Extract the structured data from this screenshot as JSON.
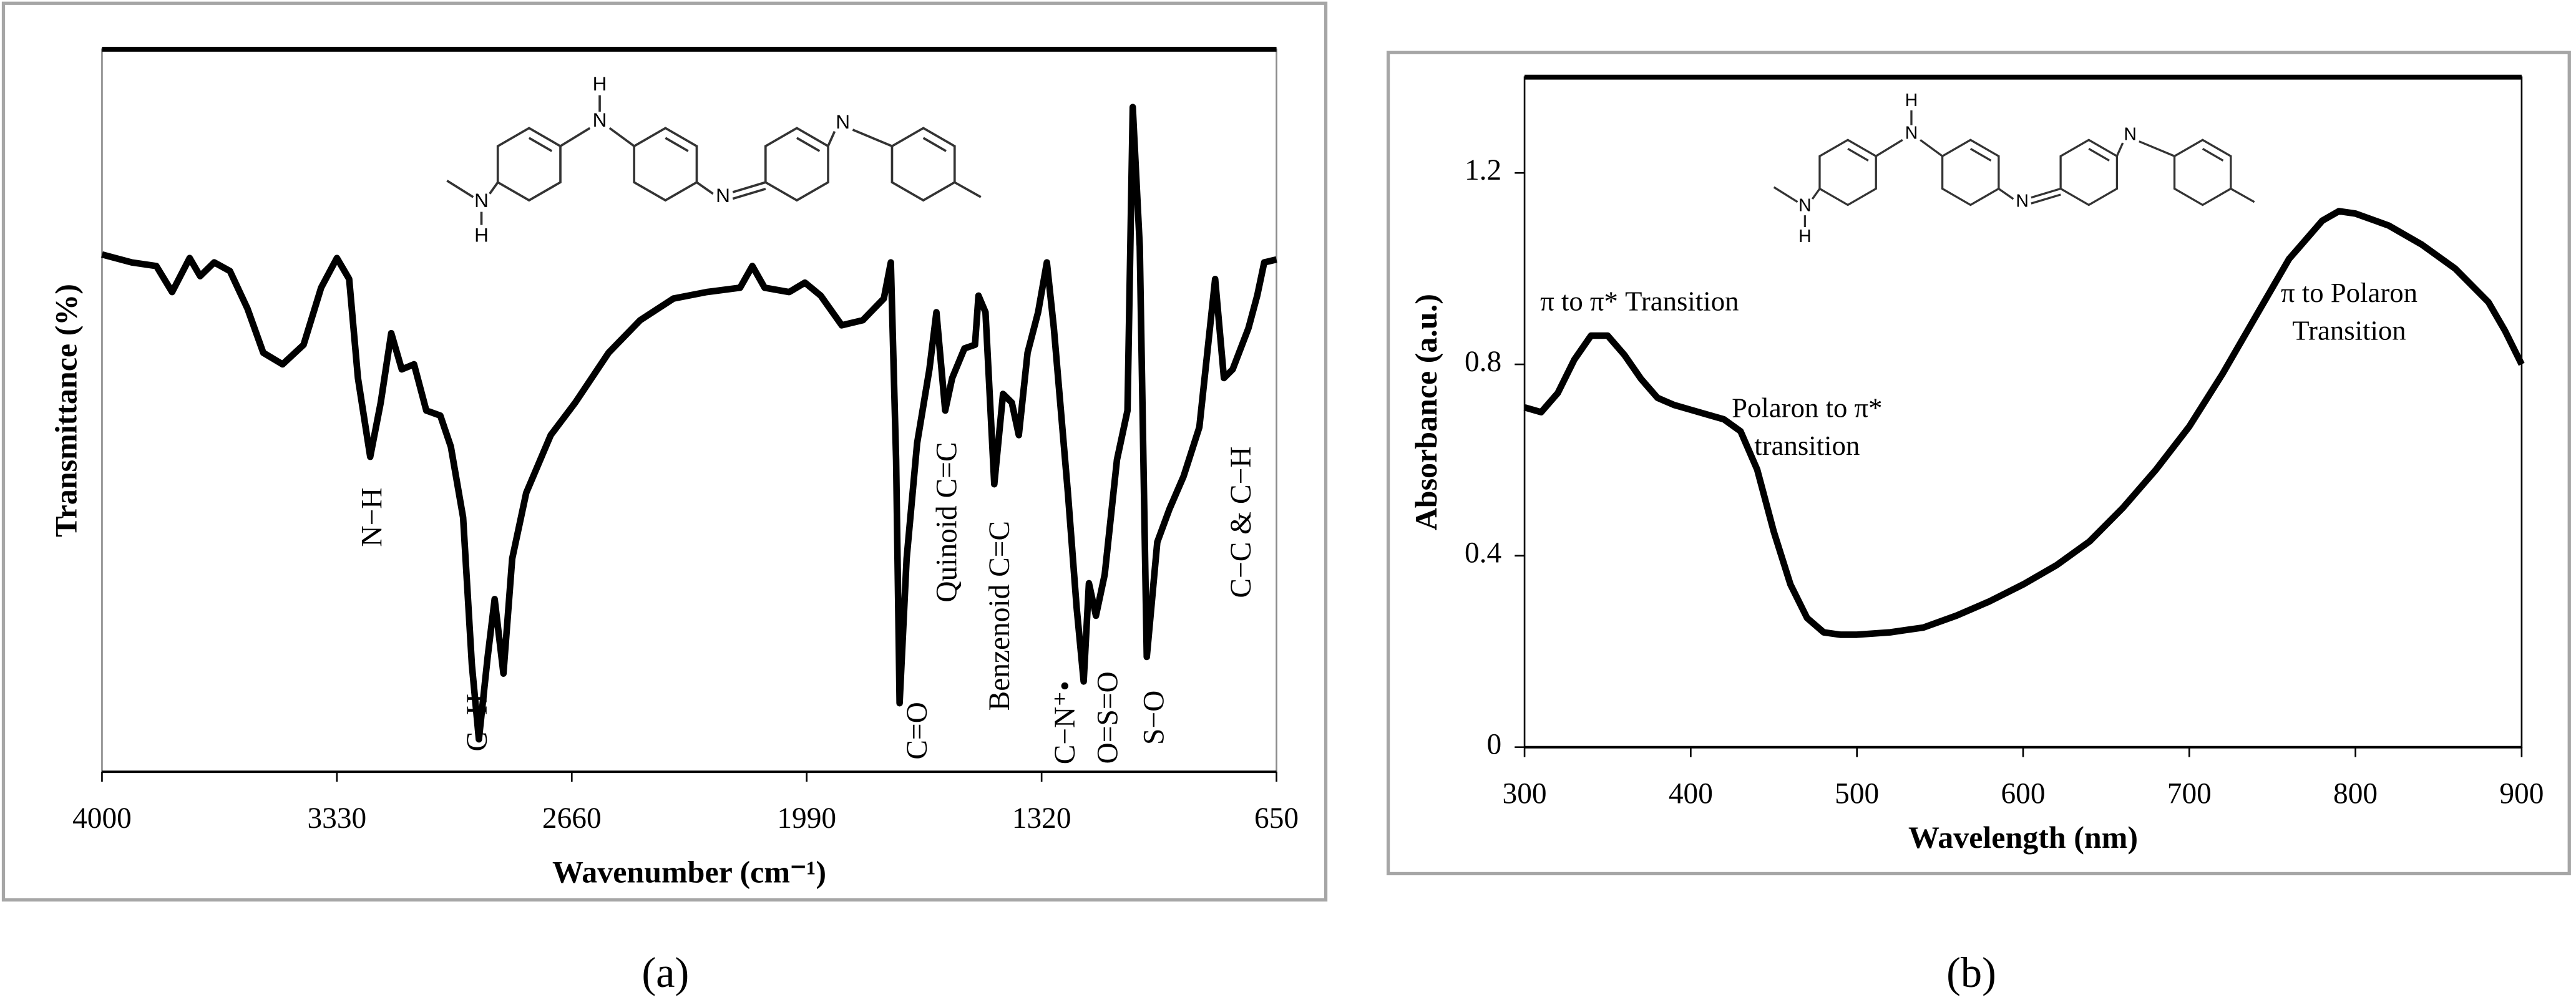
{
  "chart_data": [
    {
      "type": "line",
      "label": "(a)",
      "xlabel": "Wavenumber (cm⁻¹)",
      "ylabel": "Transmittance (%)",
      "xlim": [
        4000,
        650
      ],
      "xticks": [
        4000,
        3330,
        2660,
        1990,
        1320,
        650
      ],
      "ylim": [
        0,
        100
      ],
      "color": "#000000",
      "molecule_labels": [
        "H",
        "N",
        "N",
        "H",
        "N",
        "N"
      ],
      "annotations": [
        "N−H",
        "C−H",
        "C=O",
        "Quinoid C=C",
        "Benzenoid C=C",
        "C−N⁺•",
        "O=S=O",
        "S−O",
        "C−C & C−H"
      ],
      "x": [
        4000,
        3915,
        3845,
        3800,
        3750,
        3720,
        3680,
        3635,
        3585,
        3540,
        3485,
        3425,
        3375,
        3330,
        3295,
        3270,
        3235,
        3205,
        3175,
        3145,
        3110,
        3075,
        3035,
        3005,
        2970,
        2945,
        2925,
        2900,
        2880,
        2855,
        2830,
        2790,
        2720,
        2650,
        2555,
        2465,
        2370,
        2275,
        2180,
        2145,
        2110,
        2040,
        1995,
        1950,
        1890,
        1830,
        1770,
        1750,
        1735,
        1725,
        1705,
        1675,
        1640,
        1620,
        1595,
        1575,
        1540,
        1510,
        1500,
        1480,
        1455,
        1430,
        1405,
        1385,
        1360,
        1330,
        1305,
        1285,
        1245,
        1220,
        1200,
        1185,
        1165,
        1140,
        1105,
        1075,
        1060,
        1040,
        1020,
        990,
        955,
        915,
        870,
        825,
        800,
        775,
        730,
        705,
        685,
        650
      ],
      "values": [
        71.6,
        70.5,
        70.0,
        66.4,
        71.1,
        68.6,
        70.5,
        69.3,
        64.1,
        58.0,
        56.4,
        59.1,
        67.0,
        71.1,
        68.2,
        54.5,
        43.6,
        51.1,
        60.7,
        55.7,
        56.4,
        50.0,
        49.3,
        45.0,
        35.2,
        14.8,
        4.5,
        15.9,
        23.9,
        13.6,
        29.5,
        38.6,
        46.6,
        51.1,
        58.0,
        62.5,
        65.5,
        66.4,
        67.0,
        70.0,
        67.0,
        66.4,
        67.7,
        65.9,
        61.8,
        62.5,
        65.5,
        70.5,
        43.2,
        9.5,
        29.5,
        45.5,
        55.7,
        63.6,
        50.0,
        54.5,
        58.6,
        59.1,
        65.9,
        63.6,
        39.8,
        52.3,
        51.1,
        46.6,
        58.0,
        63.6,
        70.5,
        61.4,
        38.6,
        22.7,
        12.5,
        26.1,
        21.6,
        27.3,
        43.2,
        50.0,
        92.0,
        72.7,
        15.9,
        31.8,
        36.4,
        40.9,
        47.7,
        68.2,
        54.5,
        55.7,
        61.4,
        65.9,
        70.5,
        70.9
      ]
    },
    {
      "type": "line",
      "label": "(b)",
      "xlabel": "Wavelength (nm)",
      "ylabel": "Absorbance (a.u.)",
      "xlim": [
        300,
        900
      ],
      "xticks": [
        300,
        400,
        500,
        600,
        700,
        800,
        900
      ],
      "ylim": [
        0,
        1.4
      ],
      "yticks": [
        0,
        0.4,
        0.8,
        1.2
      ],
      "color": "#000000",
      "molecule_labels": [
        "H",
        "N",
        "N",
        "H",
        "N",
        "N"
      ],
      "annotations": [
        [
          "π to π* Transition"
        ],
        [
          "Polaron to π*",
          "transition"
        ],
        [
          "π to Polaron",
          "Transition"
        ]
      ],
      "x": [
        300,
        310,
        320,
        330,
        340,
        350,
        360,
        370,
        380,
        390,
        400,
        410,
        420,
        430,
        440,
        450,
        460,
        470,
        480,
        490,
        500,
        520,
        540,
        560,
        580,
        600,
        620,
        640,
        660,
        680,
        700,
        720,
        740,
        760,
        780,
        790,
        800,
        820,
        840,
        860,
        880,
        890,
        900
      ],
      "values": [
        0.71,
        0.7,
        0.74,
        0.81,
        0.86,
        0.86,
        0.82,
        0.77,
        0.73,
        0.715,
        0.705,
        0.695,
        0.685,
        0.66,
        0.58,
        0.45,
        0.34,
        0.27,
        0.24,
        0.235,
        0.235,
        0.24,
        0.25,
        0.275,
        0.305,
        0.34,
        0.38,
        0.43,
        0.5,
        0.58,
        0.67,
        0.78,
        0.9,
        1.02,
        1.1,
        1.12,
        1.115,
        1.09,
        1.05,
        1.0,
        0.93,
        0.87,
        0.8
      ]
    }
  ]
}
